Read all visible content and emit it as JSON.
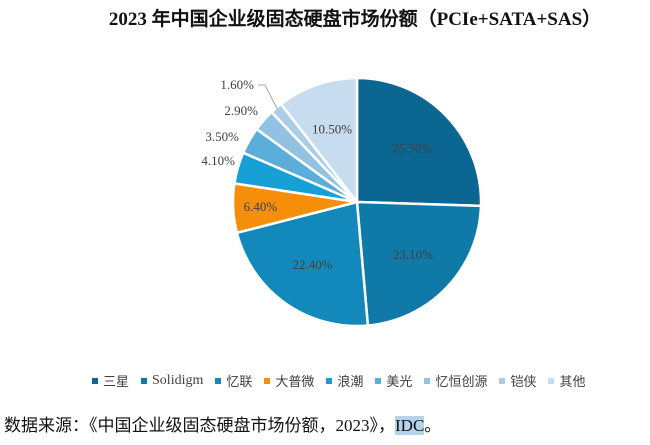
{
  "title": "2023 年中国企业级固态硬盘市场份额（PCIe+SATA+SAS）",
  "source": {
    "prefix": "数据来源：《中国企业级固态硬盘市场份额，2023》，",
    "highlight": "IDC",
    "suffix": "。"
  },
  "chart_data": {
    "type": "pie",
    "title": "2023 年中国企业级固态硬盘市场份额（PCIe+SATA+SAS）",
    "start_angle": "12 o'clock, clockwise",
    "categories": [
      "三星",
      "Solidigm",
      "忆联",
      "大普微",
      "浪潮",
      "美光",
      "忆恒创源",
      "铠侠",
      "其他"
    ],
    "values": [
      25.5,
      23.1,
      22.4,
      6.4,
      4.1,
      3.5,
      2.9,
      1.6,
      10.5
    ],
    "labels": [
      "25.50%",
      "23.10%",
      "22.40%",
      "6.40%",
      "4.10%",
      "3.50%",
      "2.90%",
      "1.60%",
      "10.50%"
    ],
    "colors": [
      "#0b6791",
      "#0f7aa7",
      "#1388bb",
      "#f58f0a",
      "#16a0d6",
      "#5aaed9",
      "#92c1e2",
      "#abcde8",
      "#c7dcee"
    ],
    "legend_position": "bottom",
    "unit": "%"
  },
  "legend": {
    "items": [
      {
        "label": "三星",
        "color": "#0b6791"
      },
      {
        "label": "Solidigm",
        "color": "#0f7aa7"
      },
      {
        "label": "忆联",
        "color": "#1388bb"
      },
      {
        "label": "大普微",
        "color": "#f58f0a"
      },
      {
        "label": "浪潮",
        "color": "#16a0d6"
      },
      {
        "label": "美光",
        "color": "#5aaed9"
      },
      {
        "label": "忆恒创源",
        "color": "#92c1e2"
      },
      {
        "label": "铠侠",
        "color": "#abcde8"
      },
      {
        "label": "其他",
        "color": "#c7dcee"
      }
    ]
  }
}
